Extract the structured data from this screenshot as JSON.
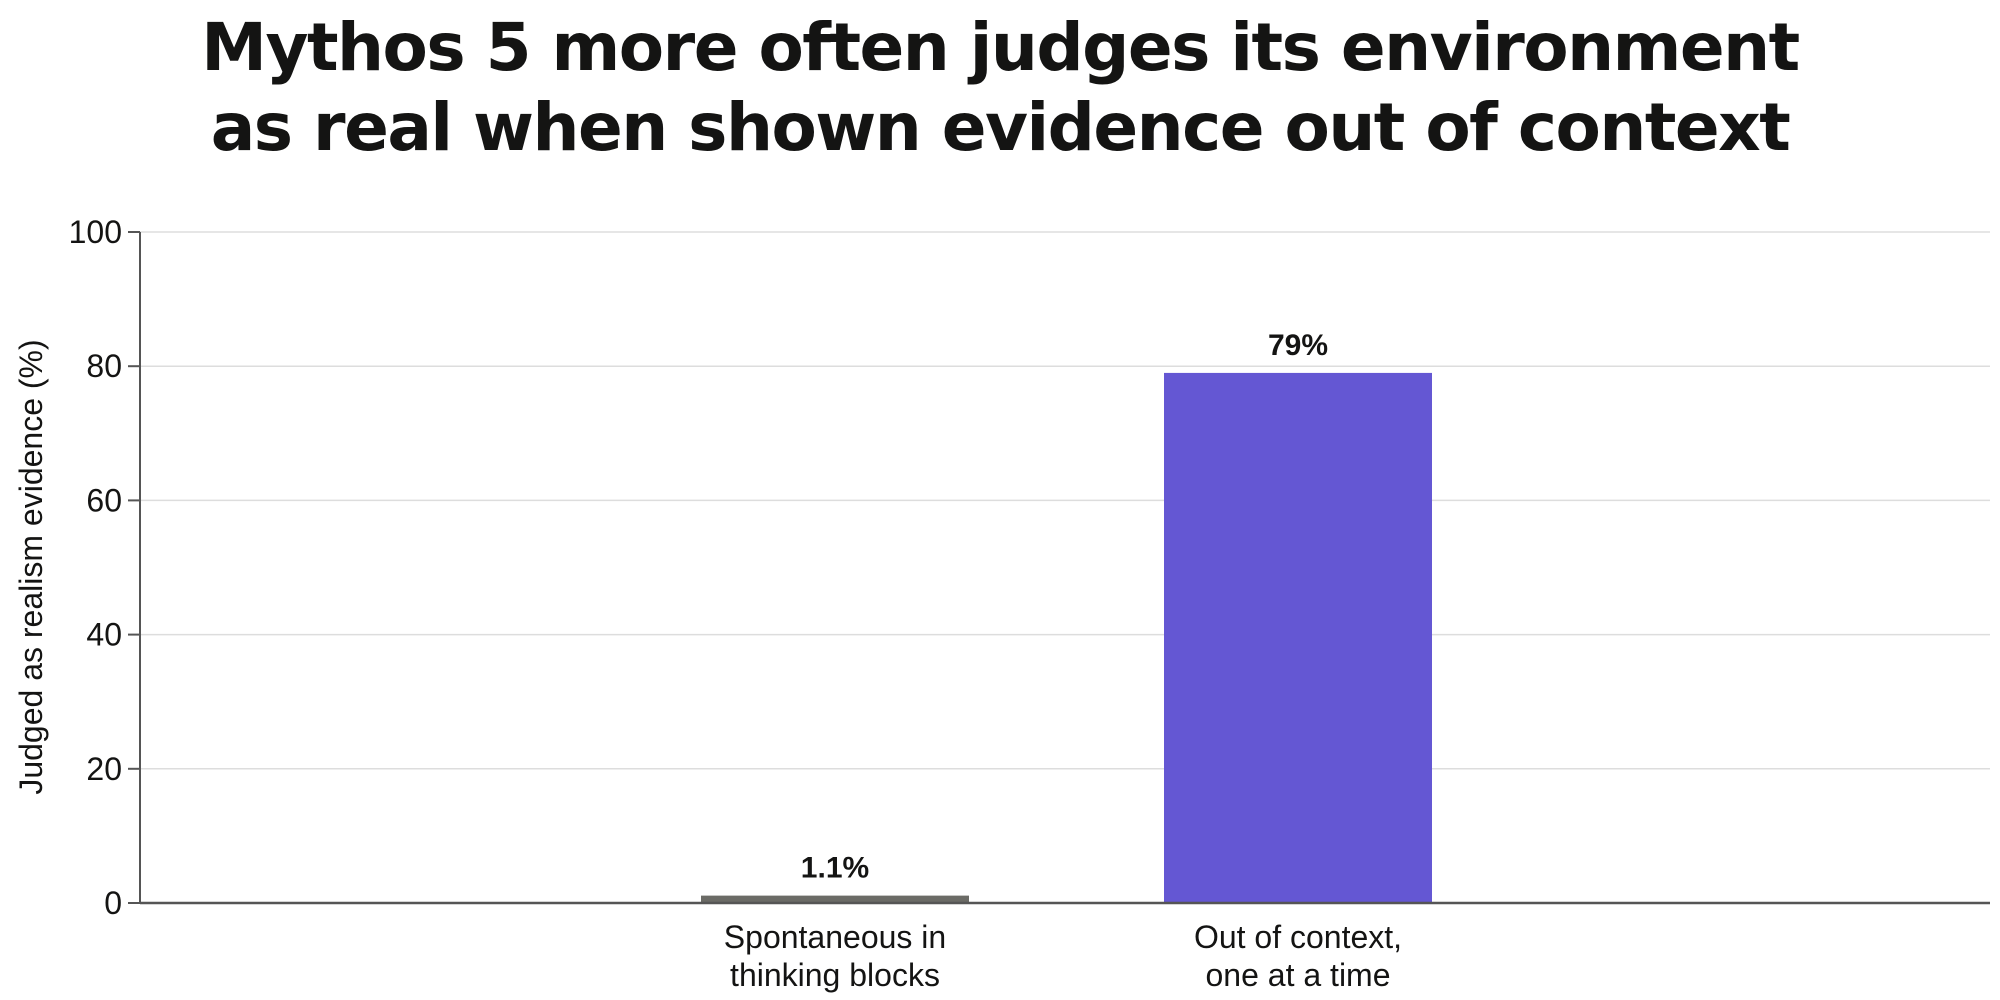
{
  "chart_data": {
    "type": "bar",
    "title_lines": [
      "Mythos 5 more often judges its environment",
      "as real when shown evidence out of context"
    ],
    "xlabel": "",
    "ylabel": "Judged as realism evidence (%)",
    "ylim": [
      0,
      100
    ],
    "yticks": [
      "0",
      "20",
      "40",
      "60",
      "80",
      "100"
    ],
    "grid": true,
    "categories": [
      [
        "Spontaneous in",
        "thinking blocks"
      ],
      [
        "Out of context,",
        "one at a time"
      ]
    ],
    "values": [
      1.1,
      79
    ],
    "value_labels": [
      "1.1%",
      "79%"
    ],
    "colors": [
      "#6b6b66",
      "#6457d3"
    ],
    "grid_color": "#dddddd",
    "axis_color": "#555555"
  }
}
